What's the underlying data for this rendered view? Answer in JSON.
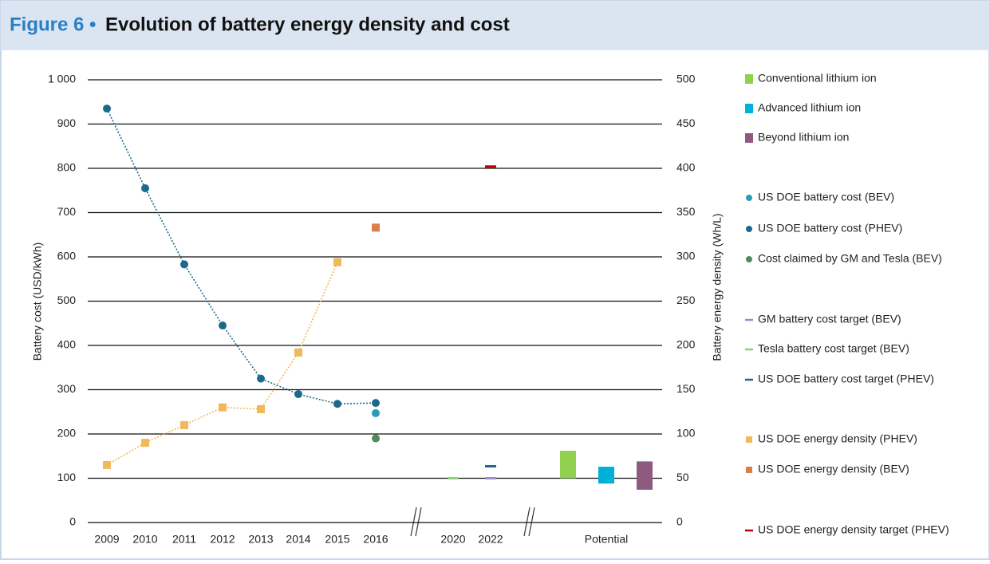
{
  "chart_data": {
    "type": "combo",
    "figure_label": "Figure 6 •",
    "title": "Evolution of battery energy density and cost",
    "y_label": "Battery cost (USD/kWh)",
    "y2_label": "Battery energy density (Wh/L)",
    "categories": [
      "2009",
      "2010",
      "2011",
      "2012",
      "2013",
      "2014",
      "2015",
      "2016",
      "2020",
      "2022",
      "Potential"
    ],
    "ylim": [
      0,
      1000
    ],
    "yticks": [
      0,
      100,
      200,
      300,
      400,
      500,
      600,
      700,
      800,
      900,
      {
        "value": 1000,
        "label": "1 000"
      }
    ],
    "y2lim": [
      0,
      500
    ],
    "y2ticks": [
      0,
      50,
      100,
      150,
      200,
      250,
      300,
      350,
      400,
      450,
      500
    ],
    "grid": true,
    "legend": "right",
    "series": [
      {
        "name": "Conventional lithium ion",
        "color": "#92d050",
        "marker": "bar",
        "axis": "y2",
        "range": [
          50,
          81
        ]
      },
      {
        "name": "Advanced lithium ion",
        "color": "#00b0d8",
        "marker": "bar",
        "axis": "y2",
        "range": [
          44,
          63
        ]
      },
      {
        "name": "Beyond lithium ion",
        "color": "#8e5a80",
        "marker": "bar",
        "axis": "y2",
        "range": [
          37,
          69
        ]
      },
      {
        "name": "US DOE battery cost (BEV)",
        "color": "#2a9bb8",
        "marker": "circle",
        "values": [
          null,
          null,
          null,
          null,
          null,
          null,
          null,
          247,
          null,
          null,
          null
        ]
      },
      {
        "name": "US DOE battery cost (PHEV)",
        "color": "#1b6a8c",
        "marker": "circle",
        "line": true,
        "values": [
          935,
          755,
          583,
          445,
          325,
          290,
          268,
          270,
          null,
          null,
          null
        ]
      },
      {
        "name": "Cost claimed by GM and Tesla (BEV)",
        "color": "#4e8c5a",
        "marker": "circle",
        "values": [
          null,
          null,
          null,
          null,
          null,
          null,
          null,
          190,
          null,
          null,
          null
        ]
      },
      {
        "name": "GM battery cost target (BEV)",
        "color": "#9b8ec4",
        "marker": "dash",
        "values": [
          null,
          null,
          null,
          null,
          null,
          null,
          null,
          null,
          null,
          100,
          null
        ]
      },
      {
        "name": "Tesla battery cost target (BEV)",
        "color": "#8cd17d",
        "marker": "dash",
        "values": [
          null,
          null,
          null,
          null,
          null,
          null,
          null,
          null,
          100,
          null,
          null
        ]
      },
      {
        "name": "US DOE battery cost target (PHEV)",
        "color": "#1b6a8c",
        "marker": "dash",
        "values": [
          null,
          null,
          null,
          null,
          null,
          null,
          null,
          null,
          null,
          127,
          null
        ]
      },
      {
        "name": "US DOE energy density (PHEV)",
        "color": "#f0b95a",
        "marker": "square",
        "line": true,
        "axis": "y2",
        "values": [
          65,
          90,
          110,
          130,
          128,
          192,
          294,
          null,
          null,
          null,
          null
        ]
      },
      {
        "name": "US DOE energy density (BEV)",
        "color": "#d9804a",
        "marker": "square",
        "axis": "y2",
        "values": [
          null,
          null,
          null,
          null,
          null,
          null,
          null,
          333,
          null,
          null,
          null
        ]
      },
      {
        "name": "US DOE energy density target (PHEV)",
        "color": "#c00000",
        "marker": "dash",
        "axis": "y2",
        "values": [
          null,
          null,
          null,
          null,
          null,
          null,
          null,
          null,
          null,
          402,
          null
        ]
      }
    ]
  }
}
